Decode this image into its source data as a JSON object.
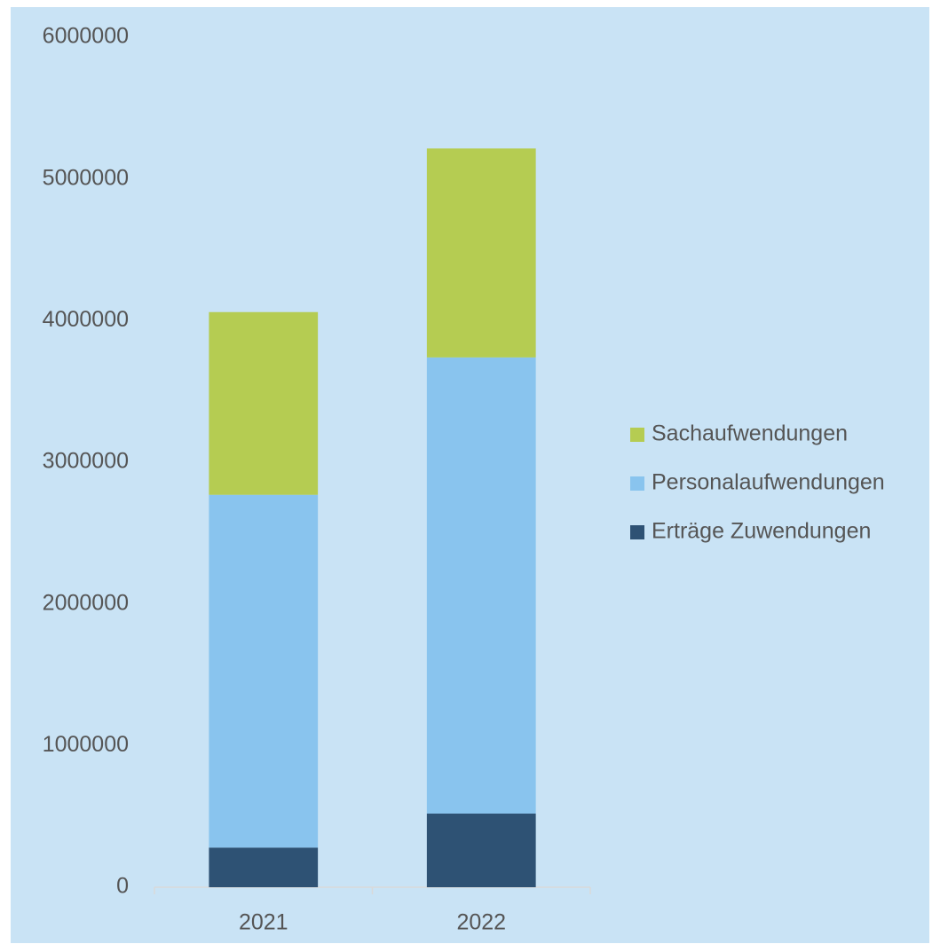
{
  "chart_data": {
    "type": "stacked_bar",
    "categories": [
      "2021",
      "2022"
    ],
    "series": [
      {
        "name": "Erträge Zuwendungen",
        "color": "#2e5274",
        "values": [
          280000,
          520000
        ]
      },
      {
        "name": "Personalaufwendungen",
        "color": "#89c4ee",
        "values": [
          2490000,
          3220000
        ]
      },
      {
        "name": "Sachaufwendungen",
        "color": "#b5cc52",
        "values": [
          1290000,
          1475000
        ]
      }
    ],
    "ylim": [
      0,
      6000000
    ],
    "yticks": [
      0,
      1000000,
      2000000,
      3000000,
      4000000,
      5000000,
      6000000
    ],
    "grid": false,
    "legend": "right"
  }
}
